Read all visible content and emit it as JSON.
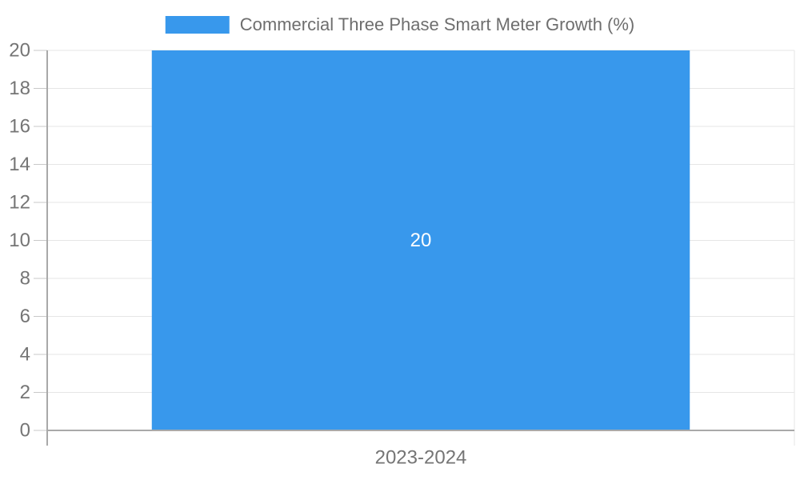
{
  "legend": {
    "label": "Commercial Three Phase Smart Meter Growth (%)",
    "swatch_color": "#3898EC"
  },
  "chart_data": {
    "type": "bar",
    "title": "Commercial Three Phase Smart Meter Growth (%)",
    "categories": [
      "2023-2024"
    ],
    "series": [
      {
        "name": "Commercial Three Phase Smart Meter Growth (%)",
        "values": [
          20
        ]
      }
    ],
    "bar_labels": [
      "20"
    ],
    "xlabel": "",
    "ylabel": "",
    "ylim": [
      0,
      20
    ],
    "ytick_step": 2,
    "ytick_labels": [
      "0",
      "2",
      "4",
      "6",
      "8",
      "10",
      "12",
      "14",
      "16",
      "18",
      "20"
    ],
    "grid": true,
    "legend_position": "top-center",
    "bar_width_ratio": 0.72,
    "colors": {
      "bar": "#3898EC",
      "bar_label": "#FFFFFF",
      "axis_text": "#757575",
      "legend_text": "#6E6E6E",
      "grid": "#E6E6E6",
      "tick": "#C9C9C9",
      "axis_line": "#A9A9A9",
      "background": "#FFFFFF"
    }
  }
}
